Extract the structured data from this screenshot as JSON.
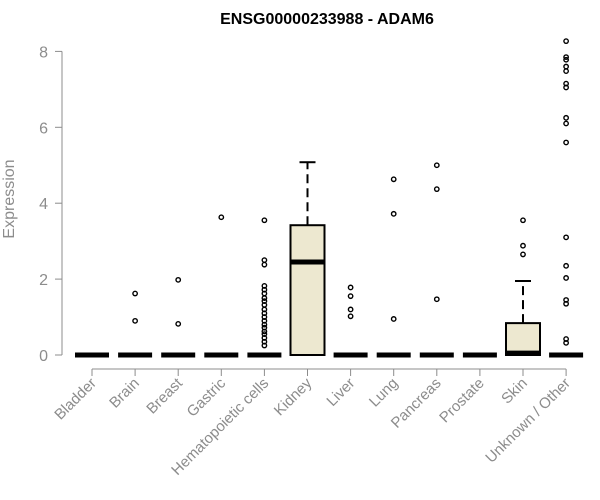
{
  "chart_data": {
    "type": "box",
    "title": "ENSG00000233988 - ADAM6",
    "xlabel": "",
    "ylabel": "Expression",
    "ylim": [
      0,
      8.3
    ],
    "yticks": [
      0,
      2,
      4,
      6,
      8
    ],
    "grid": false,
    "box_fill": "#ede8d0",
    "categories": [
      "Bladder",
      "Brain",
      "Breast",
      "Gastric",
      "Hematopoietic cells",
      "Kidney",
      "Liver",
      "Lung",
      "Pancreas",
      "Prostate",
      "Skin",
      "Unknown / Other"
    ],
    "boxes": [
      {
        "category": "Bladder",
        "min": 0,
        "q1": 0,
        "median": 0,
        "q3": 0,
        "max": 0,
        "outliers": []
      },
      {
        "category": "Brain",
        "min": 0,
        "q1": 0,
        "median": 0,
        "q3": 0,
        "max": 0,
        "outliers": [
          1.62,
          0.9
        ]
      },
      {
        "category": "Breast",
        "min": 0,
        "q1": 0,
        "median": 0,
        "q3": 0,
        "max": 0,
        "outliers": [
          1.98,
          0.82
        ]
      },
      {
        "category": "Gastric",
        "min": 0,
        "q1": 0,
        "median": 0,
        "q3": 0,
        "max": 0,
        "outliers": [
          3.63
        ]
      },
      {
        "category": "Hematopoietic cells",
        "min": 0,
        "q1": 0,
        "median": 0,
        "q3": 0,
        "max": 0,
        "outliers": [
          3.55,
          2.5,
          2.38,
          1.82,
          1.72,
          1.62,
          1.5,
          1.42,
          1.32,
          1.2,
          1.1,
          1.0,
          0.9,
          0.8,
          0.72,
          0.62,
          0.55,
          0.45,
          0.35,
          0.25
        ]
      },
      {
        "category": "Kidney",
        "min": 0,
        "q1": 0,
        "median": 2.45,
        "q3": 3.42,
        "max": 5.08,
        "outliers": []
      },
      {
        "category": "Liver",
        "min": 0,
        "q1": 0,
        "median": 0,
        "q3": 0,
        "max": 0,
        "outliers": [
          1.78,
          1.55,
          1.2,
          1.02
        ]
      },
      {
        "category": "Lung",
        "min": 0,
        "q1": 0,
        "median": 0,
        "q3": 0,
        "max": 0,
        "outliers": [
          4.63,
          3.72,
          0.95
        ]
      },
      {
        "category": "Pancreas",
        "min": 0,
        "q1": 0,
        "median": 0,
        "q3": 0,
        "max": 0,
        "outliers": [
          5.0,
          4.37,
          1.47
        ]
      },
      {
        "category": "Prostate",
        "min": 0,
        "q1": 0,
        "median": 0,
        "q3": 0,
        "max": 0,
        "outliers": []
      },
      {
        "category": "Skin",
        "min": 0,
        "q1": 0,
        "median": 0.05,
        "q3": 0.84,
        "max": 1.95,
        "outliers": [
          3.55,
          2.88,
          2.65
        ]
      },
      {
        "category": "Unknown / Other",
        "min": 0,
        "q1": 0,
        "median": 0,
        "q3": 0,
        "max": 0,
        "outliers": [
          8.27,
          7.85,
          7.78,
          7.6,
          7.48,
          7.15,
          7.05,
          6.25,
          6.1,
          5.6,
          3.1,
          2.35,
          2.03,
          1.45,
          1.35,
          0.42,
          0.32
        ]
      }
    ]
  }
}
